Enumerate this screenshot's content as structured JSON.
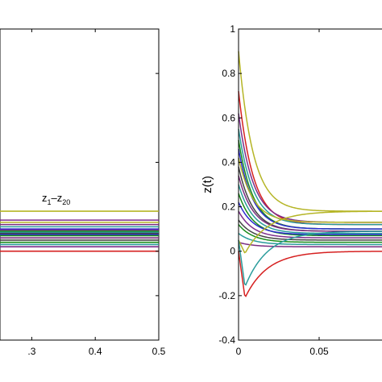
{
  "chart_data": [
    {
      "type": "line",
      "xlim": [
        0.25,
        0.5
      ],
      "ylim": [
        -0.4,
        1
      ],
      "xticks": [
        0.3,
        0.4,
        0.5
      ],
      "xtick_labels": [
        ".3",
        "0.4",
        "0.5"
      ],
      "yticks": [],
      "xlabel": "",
      "ylabel": "",
      "grid": false,
      "annotation": {
        "base": "z",
        "sub1": "1",
        "dash": "–",
        "sub2": "20",
        "x": 0.36,
        "y": 0.2
      },
      "series": [
        {
          "color": "#b5b526",
          "values": [
            0.18,
            0.18
          ]
        },
        {
          "color": "#7d2d8c",
          "values": [
            0.14,
            0.14
          ]
        },
        {
          "color": "#b5b526",
          "values": [
            0.13,
            0.13
          ]
        },
        {
          "color": "#7b2d80",
          "values": [
            0.12,
            0.12
          ]
        },
        {
          "color": "#2b9c9c",
          "values": [
            0.11,
            0.11
          ]
        },
        {
          "color": "#2c2ccf",
          "values": [
            0.1,
            0.1
          ]
        },
        {
          "color": "#7d2d8c",
          "values": [
            0.095,
            0.095
          ]
        },
        {
          "color": "#1a8c1a",
          "values": [
            0.09,
            0.09
          ]
        },
        {
          "color": "#2b9c9c",
          "values": [
            0.085,
            0.085
          ]
        },
        {
          "color": "#444444",
          "values": [
            0.08,
            0.08
          ]
        },
        {
          "color": "#2c2ccf",
          "values": [
            0.075,
            0.075
          ]
        },
        {
          "color": "#1a8c1a",
          "values": [
            0.07,
            0.07
          ]
        },
        {
          "color": "#7b2d80",
          "values": [
            0.06,
            0.06
          ]
        },
        {
          "color": "#444444",
          "values": [
            0.05,
            0.05
          ]
        },
        {
          "color": "#1a8c1a",
          "values": [
            0.04,
            0.04
          ]
        },
        {
          "color": "#2b9c9c",
          "values": [
            0.03,
            0.03
          ]
        },
        {
          "color": "#7d2d8c",
          "values": [
            0.02,
            0.02
          ]
        },
        {
          "color": "#d62020",
          "values": [
            0.0,
            0.0
          ]
        }
      ]
    },
    {
      "type": "line",
      "xlim": [
        0,
        0.1
      ],
      "ylim": [
        -0.4,
        1
      ],
      "xticks": [
        0,
        0.05
      ],
      "xtick_labels": [
        "0",
        "0.05"
      ],
      "yticks": [
        -0.4,
        -0.2,
        0,
        0.2,
        0.4,
        0.6,
        0.8,
        1
      ],
      "ytick_labels": [
        "-0.4",
        "-0.2",
        "0",
        "0.2",
        "0.4",
        "0.6",
        "0.8",
        "1"
      ],
      "xlabel": "",
      "ylabel": "z(t)",
      "grid": false,
      "series": [
        {
          "color": "#b5b526",
          "z0": 0.9,
          "zf": 0.18
        },
        {
          "color": "#d62020",
          "z0": 0.72,
          "zf": 0.12
        },
        {
          "color": "#7d2d8c",
          "z0": 0.62,
          "zf": 0.13
        },
        {
          "color": "#2b9c9c",
          "z0": 0.55,
          "zf": 0.12
        },
        {
          "color": "#1a8c1a",
          "z0": 0.5,
          "zf": 0.1
        },
        {
          "color": "#2c2ccf",
          "z0": 0.46,
          "zf": 0.1
        },
        {
          "color": "#b5b526",
          "z0": 0.42,
          "zf": 0.13
        },
        {
          "color": "#444444",
          "z0": 0.38,
          "zf": 0.09
        },
        {
          "color": "#7b2d80",
          "z0": 0.34,
          "zf": 0.09
        },
        {
          "color": "#2b9c9c",
          "z0": 0.3,
          "zf": 0.08
        },
        {
          "color": "#1a8c1a",
          "z0": 0.26,
          "zf": 0.07
        },
        {
          "color": "#2c2ccf",
          "z0": 0.22,
          "zf": 0.075
        },
        {
          "color": "#7d2d8c",
          "z0": 0.18,
          "zf": 0.06
        },
        {
          "color": "#444444",
          "z0": 0.14,
          "zf": 0.05
        },
        {
          "color": "#1a8c1a",
          "z0": 0.12,
          "zf": 0.04
        },
        {
          "color": "#2b9c9c",
          "z0": 0.08,
          "zf": 0.03
        },
        {
          "color": "#7b2d80",
          "z0": 0.04,
          "zf": 0.02
        },
        {
          "color": "#b5b526",
          "z0": 0.05,
          "zf": 0.18,
          "dip": -0.01
        },
        {
          "color": "#2b9c9c",
          "z0": 0.05,
          "zf": 0.09,
          "dip": -0.16
        },
        {
          "color": "#d62020",
          "z0": 0.0,
          "zf": 0.0,
          "dip": -0.21
        }
      ]
    }
  ]
}
